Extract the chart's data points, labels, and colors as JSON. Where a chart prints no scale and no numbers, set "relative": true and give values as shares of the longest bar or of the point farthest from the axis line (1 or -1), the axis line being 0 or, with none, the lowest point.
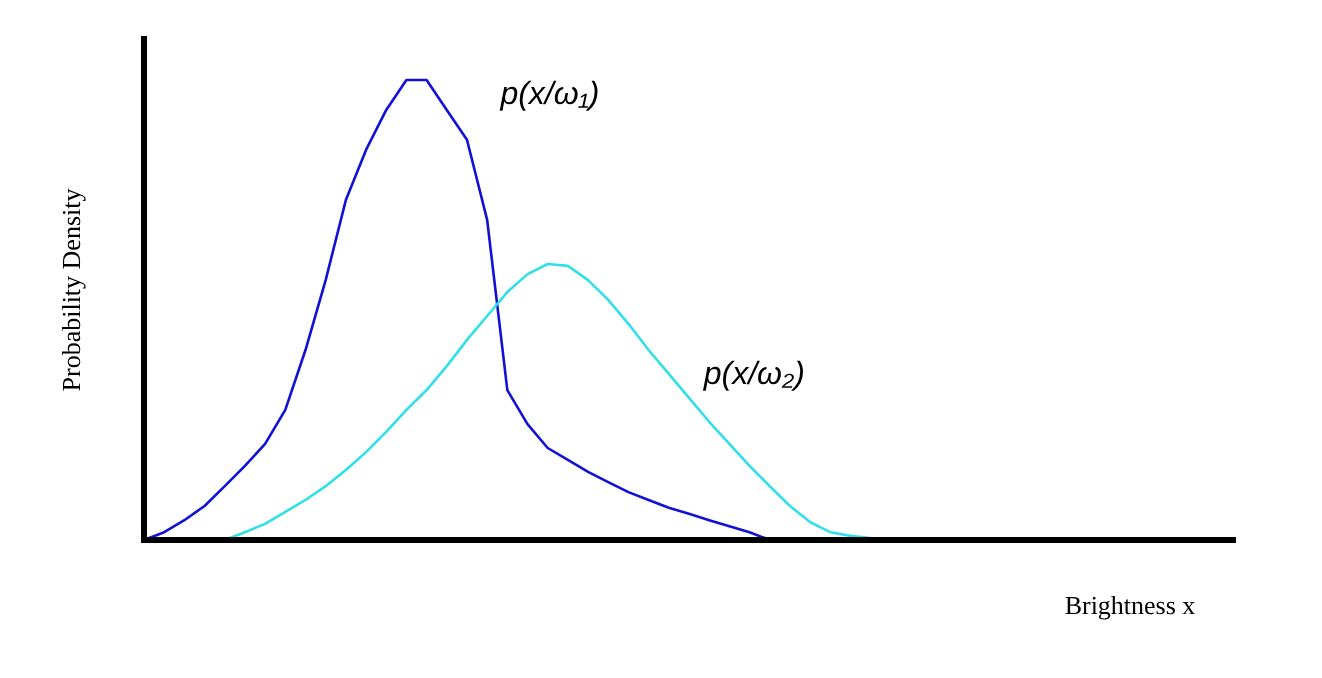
{
  "chart_data": {
    "type": "line",
    "relative": true,
    "xlabel": "Brightness x",
    "ylabel": "Probability Density",
    "legend": false,
    "marker": "none",
    "line_style": "solid",
    "categories": [
      null,
      null,
      null,
      null,
      null,
      null,
      null,
      null,
      null,
      null,
      null,
      null,
      null,
      null,
      null,
      null,
      null,
      null,
      null,
      null,
      null,
      null,
      null,
      null,
      null,
      null,
      null,
      null,
      null,
      null,
      null,
      null,
      null,
      null,
      null,
      null,
      null,
      null,
      null,
      null,
      null,
      null,
      null,
      null,
      null,
      null,
      null,
      null,
      null,
      null,
      null,
      null,
      null,
      null,
      null
    ],
    "series": [
      {
        "name": "p(x/ω₁)",
        "color": "#1010d8",
        "values": [
          0,
          0.017,
          0.043,
          0.074,
          0.117,
          0.161,
          0.209,
          0.283,
          0.413,
          0.565,
          0.739,
          0.848,
          0.935,
          1,
          1,
          0.935,
          0.87,
          0.696,
          0.326,
          0.252,
          0.2,
          0.174,
          0.148,
          0.126,
          0.104,
          0.087,
          0.07,
          0.057,
          0.043,
          0.03,
          0.017,
          0,
          null,
          null,
          null,
          null,
          null,
          null,
          null,
          null,
          null,
          null,
          null,
          null,
          null,
          null,
          null,
          null,
          null,
          null,
          null,
          null,
          null,
          null,
          null
        ]
      },
      {
        "name": "p(x/ω₂)",
        "color": "#30e0e8",
        "values": [
          null,
          null,
          null,
          null,
          0,
          0.017,
          0.035,
          0.061,
          0.087,
          0.117,
          0.152,
          0.191,
          0.235,
          0.283,
          0.326,
          0.378,
          0.435,
          0.487,
          0.539,
          0.578,
          0.6,
          0.596,
          0.565,
          0.522,
          0.47,
          0.413,
          0.361,
          0.309,
          0.257,
          0.209,
          0.161,
          0.117,
          0.074,
          0.039,
          0.017,
          0.009,
          0.004,
          0,
          0,
          null,
          null,
          null,
          null,
          null,
          null,
          null,
          null,
          null,
          null,
          null,
          null,
          null,
          null,
          null,
          null
        ]
      }
    ]
  }
}
